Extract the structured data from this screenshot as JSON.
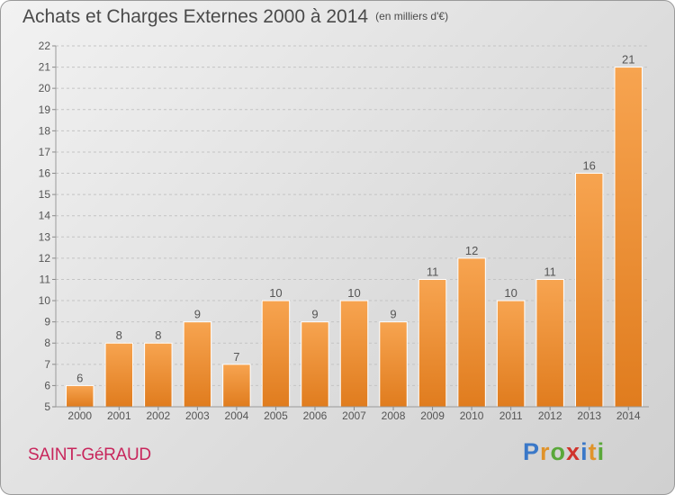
{
  "header": {
    "title": "Achats et Charges Externes 2000 à 2014",
    "unit": "(en milliers d'€)"
  },
  "footer": {
    "place": "SAINT-GéRAUD",
    "brand": "Proxiti"
  },
  "colors": {
    "bar_top": "#f7a450",
    "bar_bottom": "#e07c1e",
    "place": "#c8265c"
  },
  "chart_data": {
    "type": "bar",
    "title": "Achats et Charges Externes 2000 à 2014",
    "subtitle": "(en milliers d'€)",
    "categories": [
      "2000",
      "2001",
      "2002",
      "2003",
      "2004",
      "2005",
      "2006",
      "2007",
      "2008",
      "2009",
      "2010",
      "2011",
      "2012",
      "2013",
      "2014"
    ],
    "values": [
      6,
      8,
      8,
      9,
      7,
      10,
      9,
      10,
      9,
      11,
      12,
      10,
      11,
      16,
      21
    ],
    "ylim": [
      5,
      22
    ],
    "yticks": [
      5,
      6,
      7,
      8,
      9,
      10,
      11,
      12,
      13,
      14,
      15,
      16,
      17,
      18,
      19,
      20,
      21,
      22
    ],
    "grid": true,
    "legend": "none"
  }
}
